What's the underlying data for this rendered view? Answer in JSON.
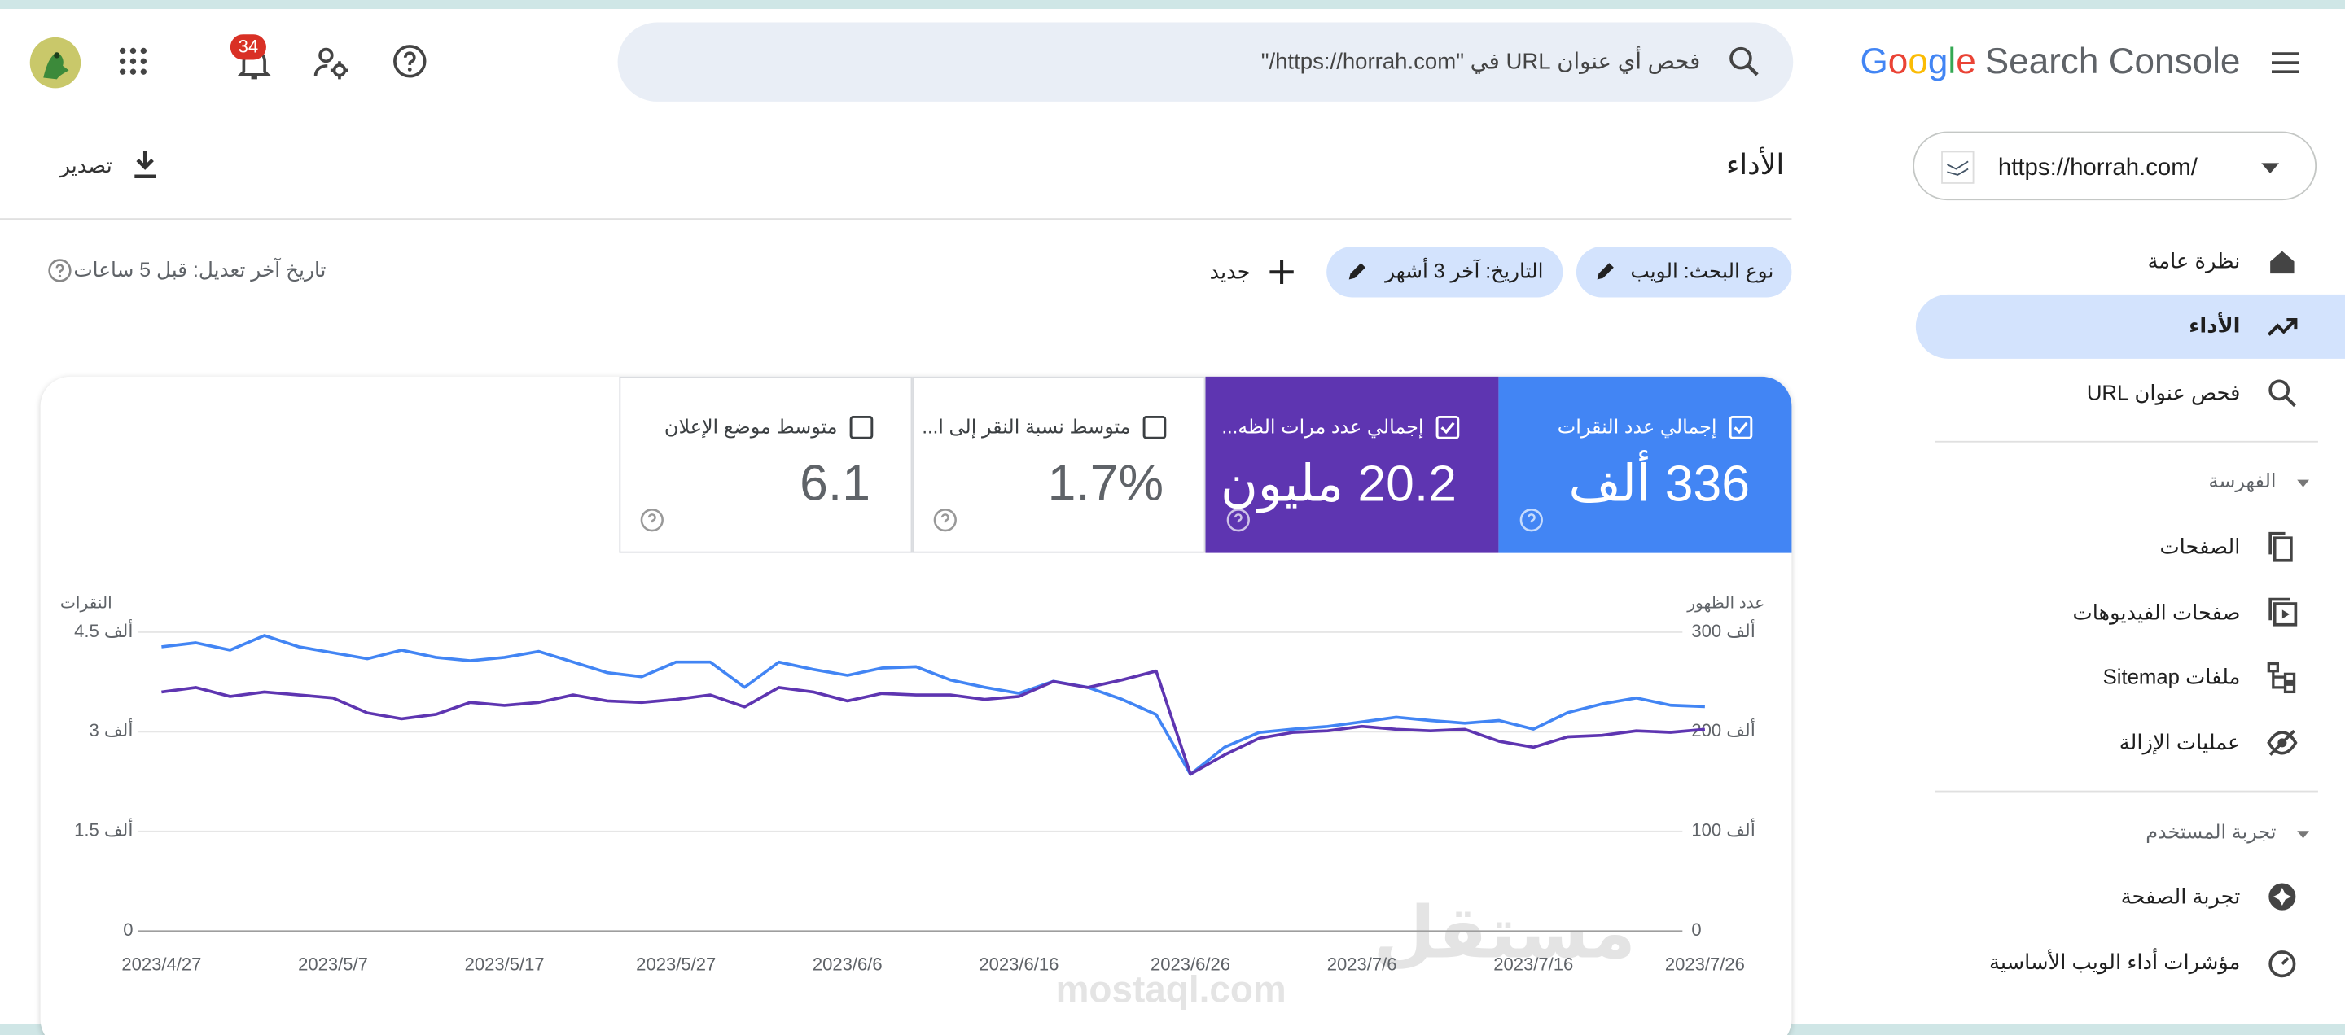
{
  "header": {
    "brand": "Google",
    "product": "Search Console",
    "search_placeholder": "فحص أي عنوان URL في \"https://horrah.com/\"",
    "notifications": "34"
  },
  "property": "https://horrah.com/",
  "nav": {
    "top": [
      {
        "label": "نظرة عامة"
      },
      {
        "label": "الأداء",
        "selected": true
      },
      {
        "label": "فحص عنوان URL"
      }
    ],
    "indexing": {
      "title": "الفهرسة",
      "items": [
        {
          "label": "الصفحات"
        },
        {
          "label": "صفحات الفيديوهات"
        },
        {
          "label": "ملفات Sitemap"
        },
        {
          "label": "عمليات الإزالة"
        }
      ]
    },
    "experience": {
      "title": "تجربة المستخدم",
      "items": [
        {
          "label": "تجربة الصفحة"
        },
        {
          "label": "مؤشرات أداء الويب الأساسية"
        }
      ]
    }
  },
  "page": {
    "title": "الأداء",
    "export": "تصدير",
    "filters": [
      "نوع البحث: الويب",
      "التاريخ: آخر 3 أشهر"
    ],
    "new": "جديد",
    "last_updated": "تاريخ آخر تعديل: قبل 5 ساعات"
  },
  "metrics": [
    {
      "label": "إجمالي عدد النقرات",
      "value": "336 ألف",
      "checked": true,
      "color": "#4285f4"
    },
    {
      "label": "إجمالي عدد مرات الظه...",
      "value": "20.2 مليون",
      "checked": true,
      "color": "#5e35b1"
    },
    {
      "label": "متوسط نسبة النقر إلى ا...",
      "value": "1.7%",
      "checked": false
    },
    {
      "label": "متوسط موضع الإعلان",
      "value": "6.1",
      "checked": false
    }
  ],
  "watermark": {
    "ar": "مستقل",
    "en": "mostaql.com"
  },
  "chart_data": {
    "type": "line",
    "y_label": "النقرات",
    "y2_label": "عدد الظهور",
    "x": [
      "2023/4/27",
      "2023/4/29",
      "2023/5/1",
      "2023/5/3",
      "2023/5/5",
      "2023/5/7",
      "2023/5/9",
      "2023/5/11",
      "2023/5/13",
      "2023/5/15",
      "2023/5/17",
      "2023/5/19",
      "2023/5/21",
      "2023/5/23",
      "2023/5/25",
      "2023/5/27",
      "2023/5/29",
      "2023/5/31",
      "2023/6/2",
      "2023/6/4",
      "2023/6/6",
      "2023/6/8",
      "2023/6/10",
      "2023/6/12",
      "2023/6/14",
      "2023/6/16",
      "2023/6/18",
      "2023/6/20",
      "2023/6/22",
      "2023/6/24",
      "2023/6/26",
      "2023/6/28",
      "2023/6/30",
      "2023/7/2",
      "2023/7/4",
      "2023/7/6",
      "2023/7/8",
      "2023/7/10",
      "2023/7/12",
      "2023/7/14",
      "2023/7/16",
      "2023/7/18",
      "2023/7/20",
      "2023/7/22",
      "2023/7/24",
      "2023/7/26"
    ],
    "xlim": [
      "2023/4/27",
      "2023/7/26"
    ],
    "xticks": [
      "2023/4/27",
      "2023/5/7",
      "2023/5/17",
      "2023/5/27",
      "2023/6/6",
      "2023/6/16",
      "2023/6/26",
      "2023/7/6",
      "2023/7/16",
      "2023/7/26"
    ],
    "ylim": [
      0,
      4500
    ],
    "yticks": [
      0,
      {
        "value": 1500,
        "label": "1.5 ألف"
      },
      {
        "value": 3000,
        "label": "3 ألف"
      },
      {
        "value": 4500,
        "label": "4.5 ألف"
      }
    ],
    "y2lim": [
      0,
      300000
    ],
    "y2ticks": [
      0,
      {
        "value": 100000,
        "label": "100 ألف"
      },
      {
        "value": 200000,
        "label": "200 ألف"
      },
      {
        "value": 300000,
        "label": "300 ألف"
      }
    ],
    "grid": true,
    "series": [
      {
        "color": "#4285f4",
        "values": [
          4280,
          4340,
          4230,
          4450,
          4280,
          4190,
          4100,
          4230,
          4120,
          4070,
          4120,
          4210,
          4050,
          3890,
          3830,
          4050,
          4050,
          3670,
          4050,
          3940,
          3850,
          3960,
          3980,
          3780,
          3670,
          3580,
          3760,
          3670,
          3490,
          3260,
          2360,
          2770,
          2990,
          3040,
          3080,
          3150,
          3220,
          3170,
          3130,
          3170,
          3040,
          3290,
          3420,
          3510,
          3400,
          3380
        ]
      },
      {
        "color": "#5e35b1",
        "axis": "y2",
        "values": [
          240000,
          244500,
          235500,
          240000,
          237000,
          234000,
          219000,
          213000,
          217500,
          229500,
          226500,
          229500,
          237000,
          231000,
          229500,
          232500,
          237000,
          225000,
          244500,
          240000,
          231000,
          238500,
          237000,
          237000,
          232500,
          235500,
          250500,
          244500,
          252000,
          261000,
          157500,
          177000,
          193500,
          199500,
          201000,
          205500,
          202500,
          201000,
          202500,
          190500,
          184500,
          195000,
          196500,
          201000,
          199500,
          202500
        ]
      }
    ]
  }
}
